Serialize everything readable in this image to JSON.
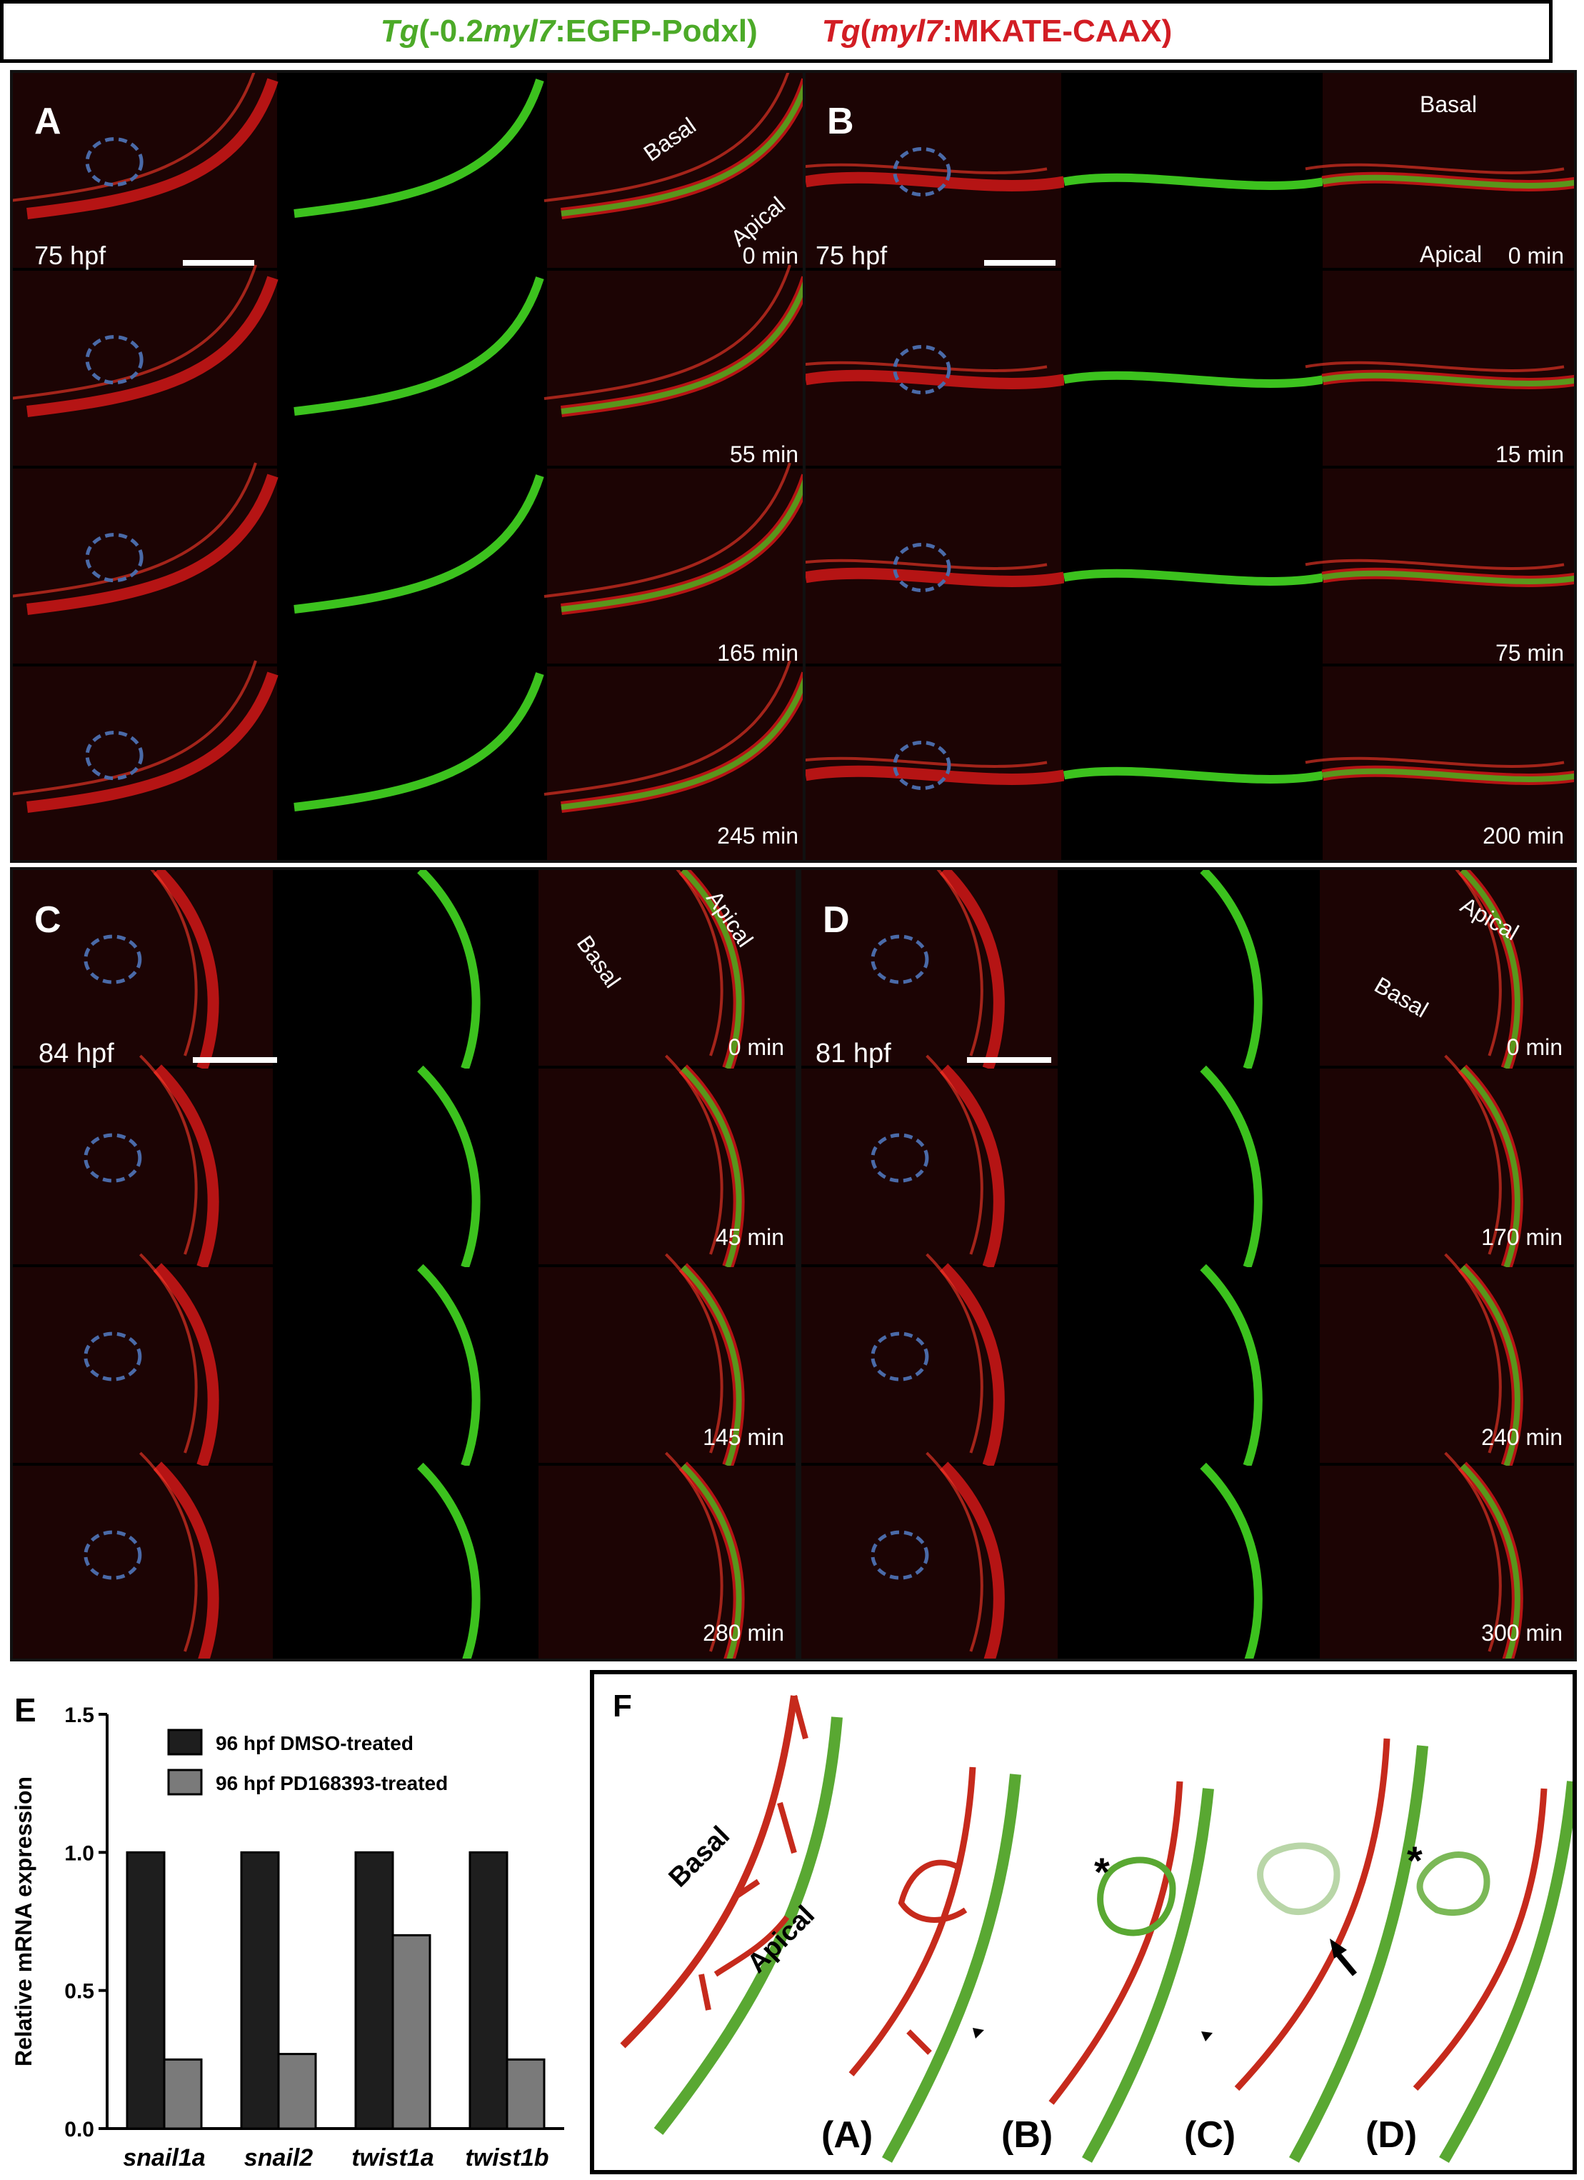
{
  "header": {
    "green_prefix": "Tg",
    "green_rest": "(-0.2",
    "green_gene": "myl7",
    "green_suffix": ":EGFP-Podxl)",
    "red_prefix": "Tg",
    "red_open": "(",
    "red_gene": "myl7",
    "red_suffix": ":MKATE-CAAX)"
  },
  "panels": {
    "A": {
      "label": "A",
      "stage": "75 hpf",
      "basal": "Basal",
      "apical": "Apical",
      "times": [
        "0 min",
        "55 min",
        "165 min",
        "245 min"
      ]
    },
    "B": {
      "label": "B",
      "stage": "75 hpf",
      "basal": "Basal",
      "apical": "Apical",
      "times": [
        "0 min",
        "15 min",
        "75 min",
        "200 min"
      ]
    },
    "C": {
      "label": "C",
      "stage": "84 hpf",
      "basal": "Basal",
      "apical": "Apical",
      "times": [
        "0 min",
        "45 min",
        "145 min",
        "280 min"
      ]
    },
    "D": {
      "label": "D",
      "stage": "81 hpf",
      "basal": "Basal",
      "apical": "Apical",
      "times": [
        "0 min",
        "170 min",
        "240 min",
        "300 min"
      ]
    },
    "E": {
      "label": "E"
    },
    "F": {
      "label": "F",
      "basal": "Basal",
      "apical": "Apical",
      "sublabels": [
        "(A)",
        "(B)",
        "(C)",
        "(D)"
      ],
      "asterisk": "*"
    }
  },
  "colors": {
    "green": "#3cc21e",
    "red": "#d01818",
    "dmso": "#1e1e1e",
    "pd": "#7a7a7a",
    "outline": "#4a6aa8"
  },
  "chart_data": {
    "type": "bar",
    "categories": [
      "snail1a",
      "snail2",
      "twist1a",
      "twist1b"
    ],
    "series": [
      {
        "name": "96 hpf DMSO-treated",
        "values": [
          1.0,
          1.0,
          1.0,
          1.0
        ]
      },
      {
        "name": "96 hpf PD168393-treated",
        "values": [
          0.25,
          0.27,
          0.7,
          0.25
        ]
      }
    ],
    "ylabel": "Relative mRNA expression",
    "ylim": [
      0,
      1.5
    ],
    "yticks": [
      "0.0",
      "0.5",
      "1.0",
      "1.5"
    ],
    "legend": "top-left"
  }
}
